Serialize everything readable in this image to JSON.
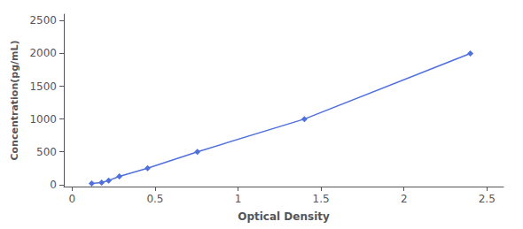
{
  "chart_data": {
    "type": "line",
    "x": [
      0.118,
      0.178,
      0.22,
      0.285,
      0.455,
      0.755,
      1.4,
      2.4
    ],
    "values": [
      15.6,
      31.25,
      62.5,
      125,
      250,
      500,
      1000,
      2000
    ],
    "xlabel": "Optical Density",
    "ylabel": "Concentration(pg/mL)",
    "xlim": [
      -0.05,
      2.6
    ],
    "ylim": [
      -30,
      2600
    ],
    "xticks": [
      0,
      0.5,
      1,
      1.5,
      2,
      2.5
    ],
    "yticks": [
      0,
      500,
      1000,
      1500,
      2000,
      2500
    ],
    "marker": "diamond",
    "line_style": "solid",
    "grid": false
  }
}
